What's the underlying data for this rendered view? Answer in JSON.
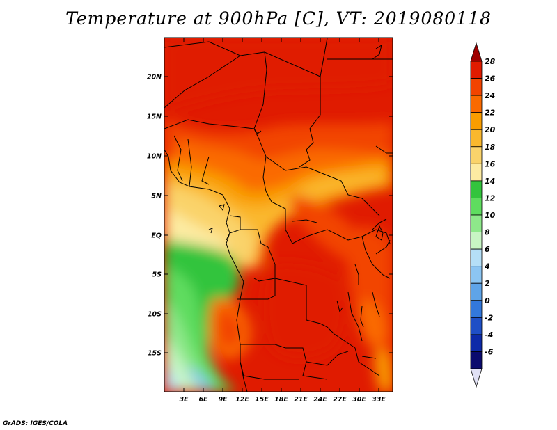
{
  "title": "Temperature at 900hPa [C], VT: 2019080118",
  "credit": "GrADS: IGES/COLA",
  "map": {
    "lat_labels": [
      "20N",
      "15N",
      "10N",
      "5N",
      "EQ",
      "5S",
      "10S",
      "15S"
    ],
    "lon_labels": [
      "3E",
      "6E",
      "9E",
      "12E",
      "15E",
      "18E",
      "21E",
      "24E",
      "27E",
      "30E",
      "33E"
    ],
    "lon_range": [
      0,
      35
    ],
    "lat_range": [
      -19.5,
      25
    ]
  },
  "colorbar": {
    "labels": [
      "28",
      "26",
      "24",
      "22",
      "20",
      "18",
      "16",
      "14",
      "12",
      "10",
      "8",
      "6",
      "4",
      "2",
      "0",
      "-2",
      "-4",
      "-6"
    ],
    "colors": [
      "#a00000",
      "#e01b00",
      "#f24400",
      "#fa6a00",
      "#f99d00",
      "#fab82e",
      "#fad36b",
      "#fdeba2",
      "#33c43d",
      "#5fdc5f",
      "#8ee88a",
      "#c8f5c4",
      "#b5dff7",
      "#8cc5f2",
      "#5fa4e8",
      "#3378dc",
      "#1f4fc6",
      "#0d2aa8",
      "#0a0a6e",
      "#e1e1f5"
    ]
  }
}
